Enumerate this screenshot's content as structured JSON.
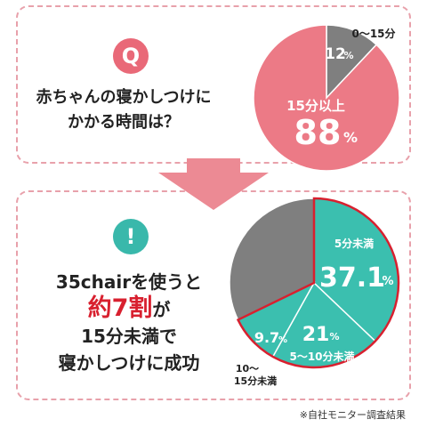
{
  "question": {
    "badge": "Q",
    "line1": "赤ちゃんの寝かしつけに",
    "line2": "かかる時間は？"
  },
  "result": {
    "badge": "!",
    "line1": "35chairを使うと",
    "highlight": "約7割",
    "particle": "が",
    "line3": "15分未満で",
    "line4": "寝かしつけに成功"
  },
  "footnote": "※自社モニター調査結果",
  "colors": {
    "pink": "#ec7a86",
    "gray": "#7f7f7f",
    "teal": "#3bbfaf",
    "red_outline": "#d8202f",
    "dashed_border": "#e8a1ab"
  },
  "chart_data": [
    {
      "type": "pie",
      "slices": [
        {
          "label": "0〜15分",
          "value": 12,
          "value_text": "12",
          "unit": "%",
          "color": "#7f7f7f"
        },
        {
          "label": "15分以上",
          "value": 88,
          "value_text": "88",
          "unit": "%",
          "color": "#ec7a86"
        }
      ]
    },
    {
      "type": "pie",
      "slices": [
        {
          "label": "5分未満",
          "value": 37.1,
          "value_text": "37.1",
          "unit": "%",
          "color": "#3bbfaf"
        },
        {
          "label": "5〜10分未満",
          "value": 21,
          "value_text": "21",
          "unit": "%",
          "color": "#3bbfaf"
        },
        {
          "label": "10〜\n15分未満",
          "value": 9.7,
          "value_text": "9.7",
          "unit": "%",
          "color": "#3bbfaf"
        },
        {
          "label": "",
          "value": 32.2,
          "value_text": "",
          "unit": "",
          "color": "#7f7f7f"
        }
      ]
    }
  ]
}
